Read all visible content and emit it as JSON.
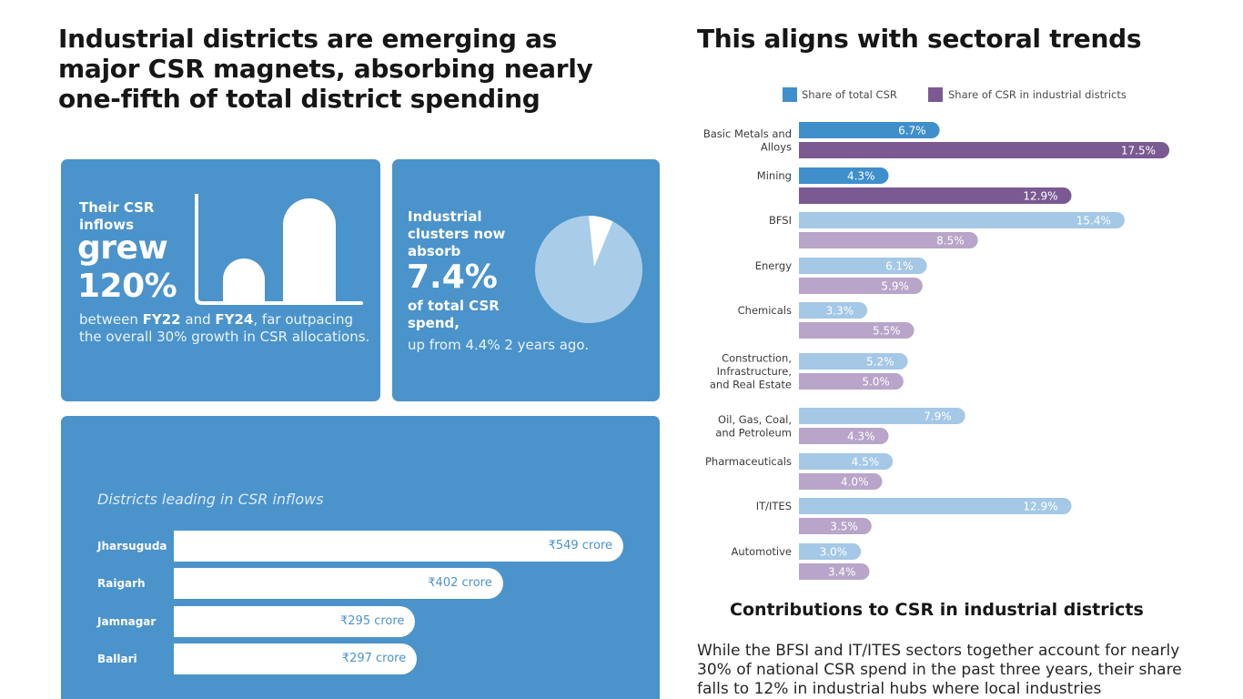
{
  "left_title": "Industrial districts are emerging as major CSR magnets, absorbing nearly one-fifth of total district spending",
  "right_title": "This aligns with sectoral trends",
  "growth_card": {
    "lead": "Their CSR inflows",
    "big_line1": "grew",
    "big_line2": "120%",
    "desc_pre": "between ",
    "desc_fy1": "FY22",
    "desc_mid": " and ",
    "desc_fy2": "FY24",
    "desc_post": ", far outpacing the overall 30% growth in CSR allocations."
  },
  "clusters_card": {
    "lead": "Industrial clusters now absorb",
    "big": "7.4%",
    "tail": "of total CSR spend,",
    "desc": "up from 4.4% 2 years ago.",
    "share_current_pct": 7.4
  },
  "districts_card": {
    "title": "Districts leading in CSR inflows",
    "rows": [
      {
        "name": "Jharsuguda",
        "value": 549,
        "label": "₹549 crore"
      },
      {
        "name": "Raigarh",
        "value": 402,
        "label": "₹402 crore"
      },
      {
        "name": "Jamnagar",
        "value": 295,
        "label": "₹295 crore"
      },
      {
        "name": "Ballari",
        "value": 297,
        "label": "₹297 crore"
      }
    ]
  },
  "chart_data": {
    "type": "bar",
    "orientation": "horizontal",
    "title": "This aligns with sectoral trends",
    "categories": [
      "Basic Metals and Alloys",
      "Mining",
      "BFSI",
      "Energy",
      "Chemicals",
      "Construction, Infrastructure, and Real Estate",
      "Oil, Gas, Coal, and Petroleum",
      "Pharmaceuticals",
      "IT/ITES",
      "Automotive"
    ],
    "category_lines": [
      [
        "Basic Metals and",
        "Alloys"
      ],
      [
        "Mining"
      ],
      [
        "BFSI"
      ],
      [
        "Energy"
      ],
      [
        "Chemicals"
      ],
      [
        "Construction,",
        "Infrastructure,",
        "and Real Estate"
      ],
      [
        "Oil, Gas, Coal,",
        "and Petroleum"
      ],
      [
        "Pharmaceuticals"
      ],
      [
        "IT/ITES"
      ],
      [
        "Automotive"
      ]
    ],
    "series": [
      {
        "name": "Share of total CSR",
        "values": [
          6.7,
          4.3,
          15.4,
          6.1,
          3.3,
          5.2,
          7.9,
          4.5,
          12.9,
          3.0
        ],
        "labels": [
          "6.7%",
          "4.3%",
          "15.4%",
          "6.1%",
          "3.3%",
          "5.2%",
          "7.9%",
          "4.5%",
          "12.9%",
          "3.0%"
        ]
      },
      {
        "name": "Share  of CSR in industrial districts",
        "values": [
          17.5,
          12.9,
          8.5,
          5.9,
          5.5,
          5.0,
          4.3,
          4.0,
          3.5,
          3.4
        ],
        "labels": [
          "17.5%",
          "12.9%",
          "8.5%",
          "5.9%",
          "5.5%",
          "5.0%",
          "4.3%",
          "4.0%",
          "3.5%",
          "3.4%"
        ]
      }
    ],
    "highlighted_categories": [
      "Basic Metals and Alloys",
      "Mining"
    ],
    "colors": {
      "total_strong": "#3f8fcb",
      "industrial_strong": "#7b5a93",
      "total_light": "#a4c8e6",
      "industrial_light": "#b8a5c9"
    },
    "legend_position": "top",
    "xlim": [
      0,
      17.5
    ]
  },
  "contributions_title": "Contributions to CSR in industrial districts",
  "contributions_text": "While the BFSI and IT/ITES sectors together account for nearly 30% of national CSR spend in the past three years, their share falls to 12% in industrial hubs where local industries"
}
